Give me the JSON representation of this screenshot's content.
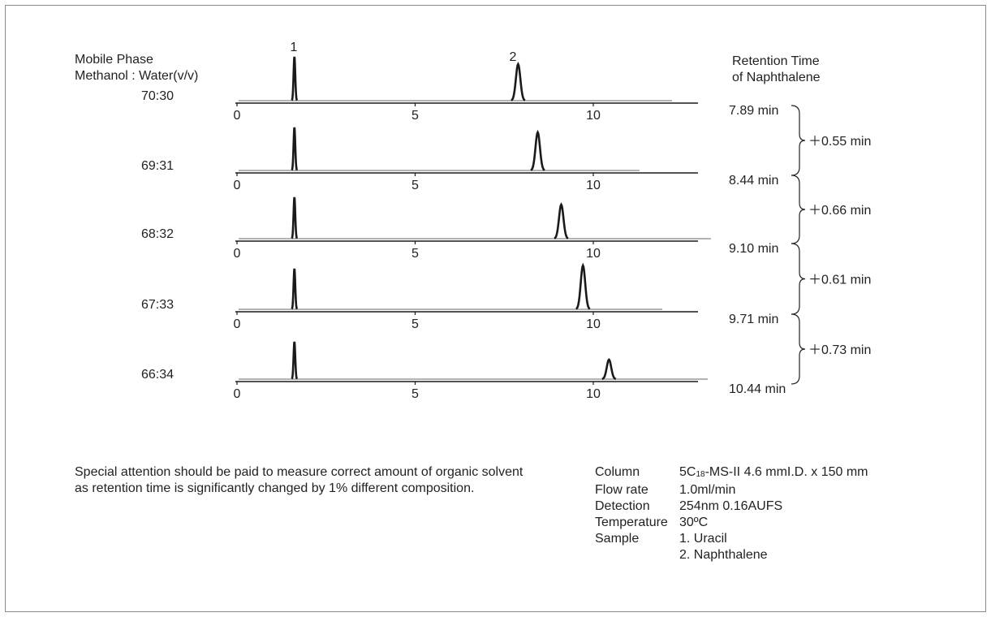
{
  "chart_data": {
    "type": "line",
    "title": "",
    "header_left": [
      "Mobile Phase",
      "Methanol : Water(v/v)"
    ],
    "header_right": [
      "Retention Time",
      "of Naphthalene"
    ],
    "x_ticks": [
      "0",
      "5",
      "10"
    ],
    "xlim": [
      0,
      13
    ],
    "peak_labels": [
      "1",
      "2"
    ],
    "series": [
      {
        "mobile_phase": "70:30",
        "uracil_rt": 1.6,
        "naphthalene_rt": 7.89,
        "rt_label": "7.89 min"
      },
      {
        "mobile_phase": "69:31",
        "uracil_rt": 1.6,
        "naphthalene_rt": 8.44,
        "rt_label": "8.44 min"
      },
      {
        "mobile_phase": "68:32",
        "uracil_rt": 1.6,
        "naphthalene_rt": 9.1,
        "rt_label": "9.10 min"
      },
      {
        "mobile_phase": "67:33",
        "uracil_rt": 1.6,
        "naphthalene_rt": 9.71,
        "rt_label": "9.71 min"
      },
      {
        "mobile_phase": "66:34",
        "uracil_rt": 1.6,
        "naphthalene_rt": 10.44,
        "rt_label": "10.44 min"
      }
    ],
    "differences": [
      "＋0.55 min",
      "＋0.66 min",
      "＋0.61 min",
      "＋0.73 min"
    ],
    "line_color": "#1a1a1a",
    "baseline_color": "#9a9a9a"
  },
  "note": "Special attention should be paid to measure correct amount of organic solvent as retention time is significantly changed by 1% different composition.",
  "conditions": {
    "column": {
      "label": "Column",
      "value_pre": "5C",
      "value_sub": "18",
      "value_post": "-MS-II 4.6 mmI.D. x 150 mm"
    },
    "flow": {
      "label": "Flow rate",
      "value": "1.0ml/min"
    },
    "detection": {
      "label": "Detection",
      "value": "254nm 0.16AUFS"
    },
    "temperature": {
      "label": "Temperature",
      "value": "30ºC"
    },
    "sample": {
      "label": "Sample",
      "value1": "1. Uracil",
      "value2": "2. Naphthalene"
    }
  }
}
